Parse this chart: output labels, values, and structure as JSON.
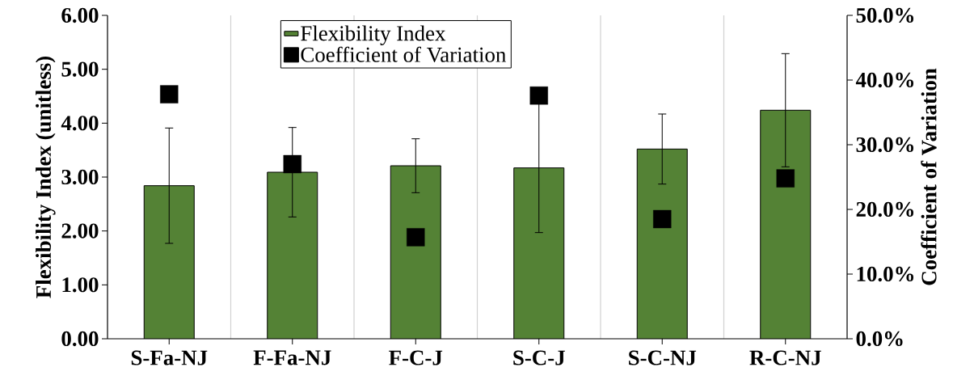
{
  "chart_data": {
    "type": "bar",
    "categories": [
      "S-Fa-NJ",
      "F-Fa-NJ",
      "F-C-J",
      "S-C-J",
      "S-C-NJ",
      "R-C-NJ"
    ],
    "ylabel": "Flexibility Index (unitless)",
    "y2label": "Coefficient of Variation",
    "ylim": [
      0,
      6
    ],
    "yticks": [
      {
        "value": 0,
        "label": "0.00"
      },
      {
        "value": 1,
        "label": "1.00"
      },
      {
        "value": 2,
        "label": "2.00"
      },
      {
        "value": 3,
        "label": "3.00"
      },
      {
        "value": 4,
        "label": "4.00"
      },
      {
        "value": 5,
        "label": "5.00"
      },
      {
        "value": 6,
        "label": "6.00"
      }
    ],
    "y2lim": [
      0,
      50
    ],
    "y2ticks": [
      {
        "value": 0,
        "label": "0.0%"
      },
      {
        "value": 10,
        "label": "10.0%"
      },
      {
        "value": 20,
        "label": "20.0%"
      },
      {
        "value": 30,
        "label": "30.0%"
      },
      {
        "value": 40,
        "label": "40.0%"
      },
      {
        "value": 50,
        "label": "50.0%"
      }
    ],
    "grid": "x",
    "legend": "top",
    "series": [
      {
        "name": "Flexibility Index",
        "color": "#548235",
        "values": [
          2.84,
          3.09,
          3.21,
          3.17,
          3.52,
          4.24
        ],
        "errors": [
          1.07,
          0.83,
          0.5,
          1.2,
          0.65,
          1.05
        ]
      },
      {
        "name": "Coefficient of Variation",
        "type": "scatter",
        "axis": "y2",
        "marker": "square",
        "color": "#000000",
        "values": [
          37.8,
          27.0,
          15.7,
          37.6,
          18.5,
          24.8
        ]
      }
    ]
  }
}
